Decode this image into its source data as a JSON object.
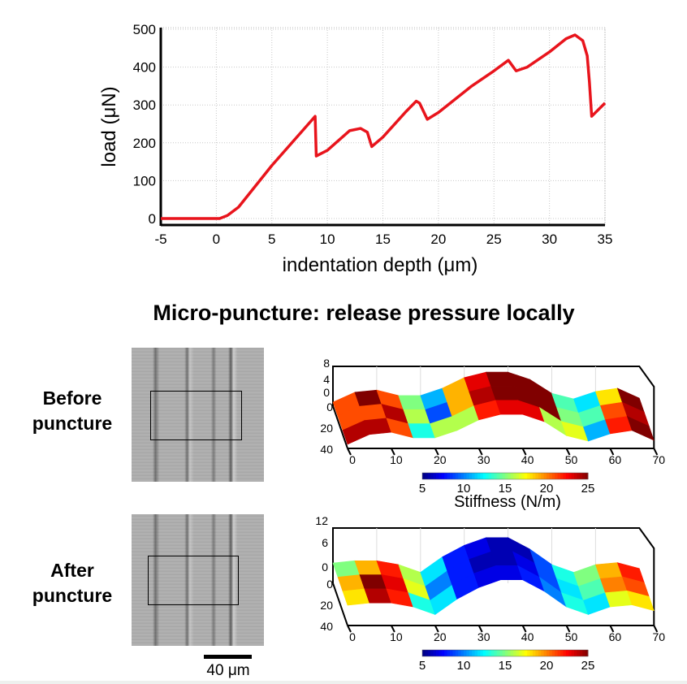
{
  "chart_data": [
    {
      "type": "line",
      "title": "",
      "xlabel": "indentation depth (μm)",
      "ylabel": "load (μN)",
      "xlim": [
        -5,
        35
      ],
      "ylim": [
        -20,
        500
      ],
      "xticks": [
        "-5",
        "0",
        "5",
        "10",
        "15",
        "20",
        "25",
        "30",
        "35"
      ],
      "yticks": [
        "0",
        "100",
        "200",
        "300",
        "400",
        "500"
      ],
      "grid": true,
      "series": [
        {
          "color": "#e8141c",
          "x": [
            -5,
            0.3,
            1,
            2,
            5,
            8.9,
            9,
            10,
            12,
            13,
            13.6,
            14,
            15,
            17,
            18,
            18.3,
            19,
            20,
            23,
            25,
            26.3,
            27,
            28,
            30,
            31.5,
            32.3,
            33,
            33.4,
            33.6,
            33.8,
            35
          ],
          "y": [
            0,
            0,
            8,
            30,
            140,
            270,
            165,
            180,
            232,
            238,
            228,
            190,
            215,
            280,
            310,
            305,
            262,
            280,
            350,
            390,
            418,
            390,
            400,
            440,
            475,
            485,
            470,
            430,
            360,
            270,
            305
          ]
        }
      ]
    },
    {
      "type": "heatmap",
      "panel": "Before puncture",
      "xticks": [
        "0",
        "10",
        "20",
        "30",
        "40",
        "50",
        "60",
        "70"
      ],
      "yticks": [
        "0",
        "20",
        "40"
      ],
      "zticks": [
        "8",
        "4",
        "0"
      ],
      "x": [
        0,
        5,
        10,
        15,
        20,
        25,
        30,
        35,
        40,
        45,
        50,
        55,
        60,
        65,
        70
      ],
      "surface_z": [
        0,
        2.7,
        3.3,
        1.8,
        1.8,
        3.8,
        6.7,
        8.2,
        8.2,
        6.2,
        2.4,
        0.9,
        2.9,
        3.8,
        1.1
      ],
      "stiffness": [
        [
          21,
          25,
          21,
          15,
          11,
          19,
          23,
          25,
          25,
          25,
          14,
          12,
          18,
          25
        ],
        [
          21,
          21,
          24,
          16,
          9,
          19,
          24,
          25,
          25,
          25,
          15,
          14,
          21,
          24
        ],
        [
          24,
          24,
          21,
          13,
          16,
          16,
          22,
          23,
          23,
          16,
          17,
          11,
          22,
          25
        ]
      ],
      "colorbar": {
        "ticks": [
          "5",
          "10",
          "15",
          "20",
          "25"
        ],
        "range": [
          5,
          25
        ],
        "colormap": "jet",
        "label": "Stiffness (N/m)"
      }
    },
    {
      "type": "heatmap",
      "panel": "After puncture",
      "xticks": [
        "0",
        "10",
        "20",
        "30",
        "40",
        "50",
        "60",
        "70"
      ],
      "yticks": [
        "0",
        "20",
        "40"
      ],
      "zticks": [
        "12",
        "6",
        "0"
      ],
      "x": [
        0,
        5,
        10,
        15,
        20,
        25,
        30,
        35,
        40,
        45,
        50,
        55,
        60,
        65,
        70
      ],
      "surface_z": [
        0.4,
        1,
        1,
        0,
        -2,
        2,
        5,
        7,
        7,
        4,
        0,
        -2,
        0,
        0.5,
        -1
      ],
      "stiffness": [
        [
          15,
          19,
          22,
          16,
          12,
          8,
          7,
          6,
          6,
          9,
          13,
          15,
          19,
          22
        ],
        [
          19,
          25,
          23,
          17,
          10,
          8,
          6,
          6,
          7,
          9,
          12,
          14,
          20,
          21
        ],
        [
          18,
          24,
          22,
          13,
          12,
          8,
          7,
          7,
          8,
          10,
          13,
          12,
          17,
          18
        ]
      ],
      "colorbar": {
        "ticks": [
          "5",
          "10",
          "15",
          "20",
          "25"
        ],
        "range": [
          5,
          25
        ],
        "colormap": "jet"
      }
    }
  ],
  "heading": "Micro-puncture: release pressure locally",
  "panels": {
    "before_label_1": "Before",
    "before_label_2": "puncture",
    "after_label_1": "After",
    "after_label_2": "puncture"
  },
  "scale_bar": "40 μm"
}
